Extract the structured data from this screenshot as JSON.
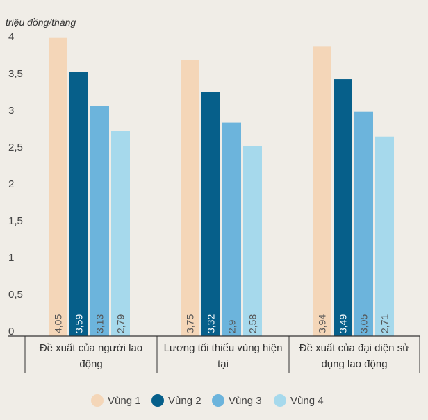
{
  "chart_data": {
    "type": "bar",
    "unit_label": "triệu đồng/tháng",
    "categories": [
      [
        "Đề xuất của người lao",
        "động"
      ],
      [
        "Lương tối thiểu vùng hiện",
        "tại"
      ],
      [
        "Đề xuất của đại diện sử",
        "dụng lao động"
      ]
    ],
    "series": [
      {
        "name": "Vùng 1",
        "color": "#f4d6b8",
        "values": [
          4.05,
          3.75,
          3.94
        ],
        "labels": [
          "4,05",
          "3,75",
          "3,94"
        ]
      },
      {
        "name": "Vùng 2",
        "color": "#065f8a",
        "values": [
          3.59,
          3.32,
          3.49
        ],
        "labels": [
          "3,59",
          "3,32",
          "3,49"
        ]
      },
      {
        "name": "Vùng 3",
        "color": "#6cb4dc",
        "values": [
          3.13,
          2.9,
          3.05
        ],
        "labels": [
          "3,13",
          "2,9",
          "3,05"
        ]
      },
      {
        "name": "Vùng 4",
        "color": "#a6d9ec",
        "values": [
          2.79,
          2.58,
          2.71
        ],
        "labels": [
          "2,79",
          "2,58",
          "2,71"
        ]
      }
    ],
    "ylim": [
      0,
      4
    ],
    "yticks": [
      {
        "value": 0,
        "label": "0"
      },
      {
        "value": 0.5,
        "label": "0,5"
      },
      {
        "value": 1,
        "label": "1"
      },
      {
        "value": 1.5,
        "label": "1,5"
      },
      {
        "value": 2,
        "label": "2"
      },
      {
        "value": 2.5,
        "label": "2,5"
      },
      {
        "value": 3,
        "label": "3"
      },
      {
        "value": 3.5,
        "label": "3,5"
      },
      {
        "value": 4,
        "label": "4"
      }
    ],
    "label_colors": {
      "light": "#555555",
      "dark": "#ffffff"
    },
    "legend_position": "bottom-center",
    "grid": false
  }
}
